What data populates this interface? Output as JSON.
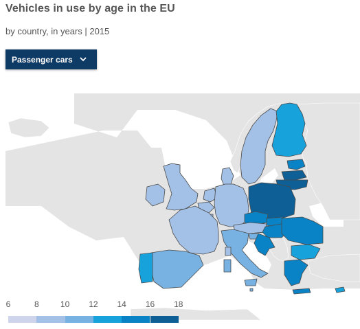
{
  "header": {
    "title": "Vehicles in use by age in the EU",
    "subtitle": "by country, in years | 2015"
  },
  "dropdown": {
    "selected": "Passenger cars",
    "icon": "chevron-down-icon"
  },
  "legend": {
    "ticks": [
      "6",
      "8",
      "10",
      "12",
      "14",
      "16",
      "18"
    ],
    "colors": [
      "#cdd4ec",
      "#a3c1e6",
      "#78b2e2",
      "#18a2dc",
      "#0a83c6",
      "#0d5f96"
    ]
  },
  "colors": {
    "sea": "#ffffff",
    "non_eu_land": "#e4e4e4",
    "border": "#4a4a4a",
    "dropdown_bg": "#0e3a66"
  },
  "map": {
    "regions": [
      {
        "name": "norway",
        "eu": false
      },
      {
        "name": "iceland",
        "eu": false
      },
      {
        "name": "russia",
        "eu": false
      },
      {
        "name": "switzerland",
        "eu": false
      },
      {
        "name": "balkans",
        "eu": false
      },
      {
        "name": "turkey",
        "eu": false
      },
      {
        "name": "north-africa",
        "eu": false
      },
      {
        "name": "sweden",
        "eu": true,
        "bin": 1
      },
      {
        "name": "finland",
        "eu": true,
        "bin": 3
      },
      {
        "name": "estonia",
        "eu": true,
        "bin": 4
      },
      {
        "name": "latvia",
        "eu": true,
        "bin": 5
      },
      {
        "name": "lithuania",
        "eu": true,
        "bin": 5
      },
      {
        "name": "united-kingdom",
        "eu": true,
        "bin": 1
      },
      {
        "name": "ireland",
        "eu": true,
        "bin": 1
      },
      {
        "name": "denmark",
        "eu": true,
        "bin": 1
      },
      {
        "name": "netherlands",
        "eu": true,
        "bin": 1
      },
      {
        "name": "belgium",
        "eu": true,
        "bin": 1
      },
      {
        "name": "luxembourg",
        "eu": true,
        "bin": 1
      },
      {
        "name": "germany",
        "eu": true,
        "bin": 1
      },
      {
        "name": "poland",
        "eu": true,
        "bin": 5
      },
      {
        "name": "czechia",
        "eu": true,
        "bin": 4
      },
      {
        "name": "slovakia",
        "eu": true,
        "bin": 4
      },
      {
        "name": "austria",
        "eu": true,
        "bin": 1
      },
      {
        "name": "hungary",
        "eu": true,
        "bin": 4
      },
      {
        "name": "romania",
        "eu": true,
        "bin": 4
      },
      {
        "name": "bulgaria",
        "eu": true,
        "bin": 3
      },
      {
        "name": "slovenia",
        "eu": true,
        "bin": 2
      },
      {
        "name": "croatia",
        "eu": true,
        "bin": 4
      },
      {
        "name": "france",
        "eu": true,
        "bin": 1
      },
      {
        "name": "spain",
        "eu": true,
        "bin": 2
      },
      {
        "name": "portugal",
        "eu": true,
        "bin": 3
      },
      {
        "name": "italy",
        "eu": true,
        "bin": 2
      },
      {
        "name": "sardinia",
        "eu": true,
        "bin": 2
      },
      {
        "name": "sicily",
        "eu": true,
        "bin": 2
      },
      {
        "name": "corsica",
        "eu": true,
        "bin": 1
      },
      {
        "name": "greece",
        "eu": true,
        "bin": 4
      },
      {
        "name": "crete",
        "eu": true,
        "bin": 4
      },
      {
        "name": "cyprus",
        "eu": true,
        "bin": 3
      },
      {
        "name": "malta",
        "eu": true,
        "bin": 2
      }
    ]
  }
}
